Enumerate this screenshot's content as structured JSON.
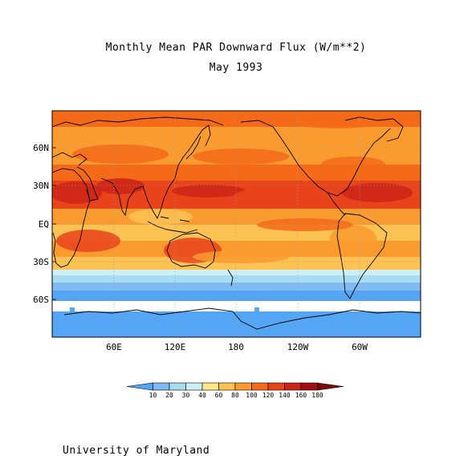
{
  "title": "Monthly Mean PAR Downward Flux (W/m**2)",
  "subtitle": "May 1993",
  "footer": "University of Maryland",
  "map": {
    "lat_ticks": [
      "60N",
      "30N",
      "EQ",
      "30S",
      "60S"
    ],
    "lon_ticks": [
      "60E",
      "120E",
      "180",
      "120W",
      "60W"
    ]
  },
  "colorbar": {
    "labels": [
      "10",
      "20",
      "30",
      "40",
      "60",
      "80",
      "100",
      "120",
      "140",
      "160",
      "180"
    ],
    "colors": [
      "#55a5f5",
      "#7fbaf2",
      "#a8dcf0",
      "#cdeff5",
      "#fde88c",
      "#fcc353",
      "#fa9b2f",
      "#f46a18",
      "#e8431b",
      "#cc2418",
      "#a01010",
      "#7a0a0a"
    ]
  },
  "field_colors": {
    "deep_red": "#cc2418",
    "red": "#e8431b",
    "orange_red": "#f46a18",
    "orange": "#fa9b2f",
    "light_orange": "#fcc353",
    "yellow": "#fde88c",
    "pale_cyan": "#cdeff5",
    "light_blue": "#a8dcf0",
    "mid_blue": "#7fbaf2",
    "blue": "#55a5f5"
  }
}
